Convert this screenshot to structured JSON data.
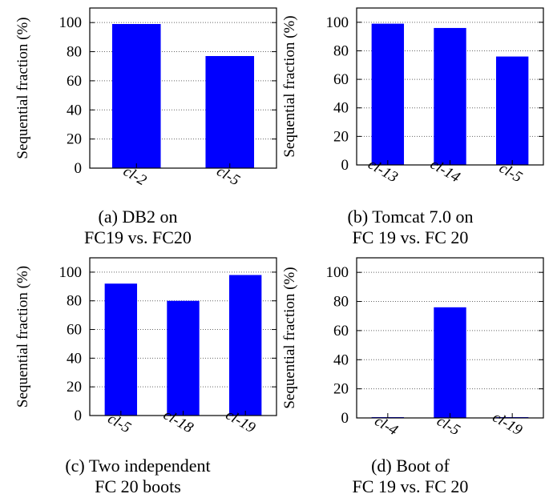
{
  "chart_data": [
    {
      "type": "bar",
      "ylabel": "Sequential fraction (%)",
      "ylim": [
        0,
        110
      ],
      "yticks": [
        0,
        20,
        40,
        60,
        80,
        100
      ],
      "grid": "horizontal dotted",
      "categories": [
        "cl-2",
        "cl-5"
      ],
      "values": [
        99,
        77
      ],
      "color": "#0000ff",
      "caption": [
        "(a) DB2 on",
        "FC19 vs. FC20"
      ]
    },
    {
      "type": "bar",
      "ylabel": "Sequential fraction (%)",
      "ylim": [
        0,
        110
      ],
      "yticks": [
        0,
        20,
        40,
        60,
        80,
        100
      ],
      "grid": "horizontal dotted",
      "categories": [
        "cl-13",
        "cl-14",
        "cl-5"
      ],
      "values": [
        99,
        96,
        76
      ],
      "color": "#0000ff",
      "caption": [
        "(b) Tomcat 7.0 on",
        "FC 19 vs. FC 20"
      ]
    },
    {
      "type": "bar",
      "ylabel": "Sequential fraction (%)",
      "ylim": [
        0,
        110
      ],
      "yticks": [
        0,
        20,
        40,
        60,
        80,
        100
      ],
      "grid": "horizontal dotted",
      "categories": [
        "cl-5",
        "cl-18",
        "cl-19"
      ],
      "values": [
        92,
        80,
        98
      ],
      "color": "#0000ff",
      "caption": [
        "(c) Two independent",
        "FC 20 boots"
      ]
    },
    {
      "type": "bar",
      "ylabel": "Sequential fraction (%)",
      "ylim": [
        0,
        110
      ],
      "yticks": [
        0,
        20,
        40,
        60,
        80,
        100
      ],
      "grid": "horizontal dotted",
      "categories": [
        "cl-4",
        "cl-5",
        "cl-19"
      ],
      "values": [
        0.3,
        76,
        0.3
      ],
      "color": "#0000ff",
      "caption": [
        "(d) Boot of",
        "FC 19 vs. FC 20"
      ]
    }
  ]
}
